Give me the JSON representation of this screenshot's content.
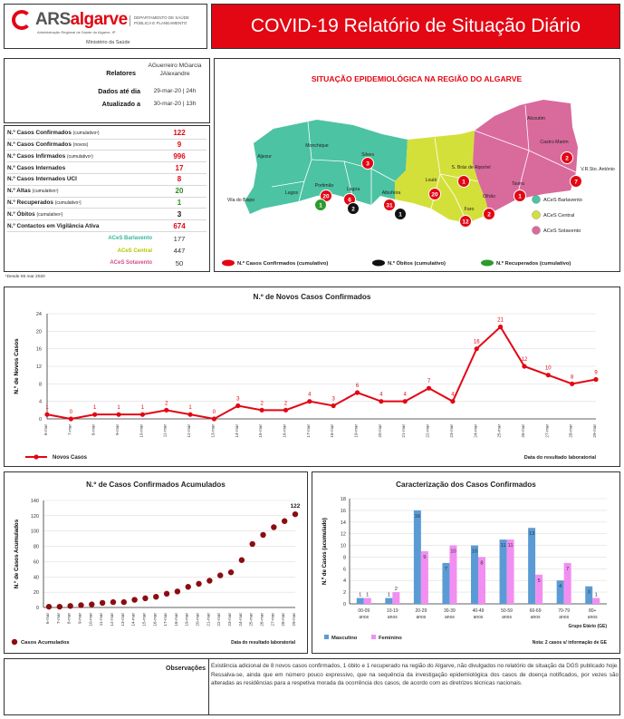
{
  "header": {
    "logo_prefix": "ARS",
    "logo_suffix": "algarve",
    "logo_tagline": "Administração Regional de Saúde do Algarve, IP",
    "logo_department": "DEPARTAMENTO DE SAÚDE PÚBLICA E PLANEAMENTO",
    "logo_ministry": "Ministério da Saúde",
    "title": "COVID-19 Relatório de Situação Diário"
  },
  "meta": {
    "relatores_label": "Relatores",
    "relatores_value": "AGuerreiro MGarcia JAlexandre",
    "dados_label": "Dados até dia",
    "dados_value": "29-mar-20 | 24h",
    "atualizado_label": "Atualizado a",
    "atualizado_value": "30-mar-20 | 13h"
  },
  "indicators": [
    {
      "label": "N.º Casos Confirmados",
      "note": "(cumulativo¹)",
      "value": "122",
      "color": "#e30613"
    },
    {
      "label": "N.º Casos Confirmados",
      "note": "(novos)",
      "value": "9",
      "color": "#e30613"
    },
    {
      "label": "N.º Casos Infirmados",
      "note": "(cumulativo¹)",
      "value": "996",
      "color": "#e30613"
    },
    {
      "label": "N.º Casos Internados",
      "note": "",
      "value": "17",
      "color": "#e30613"
    },
    {
      "label": "N.º Casos Internados UCI",
      "note": "",
      "value": "8",
      "color": "#e30613"
    },
    {
      "label": "N.º Altas",
      "note": "(cumulativo¹)",
      "value": "20",
      "color": "#2e8b1f"
    },
    {
      "label": "N.º Recuperados",
      "note": "(cumulativo¹)",
      "value": "1",
      "color": "#2e8b1f"
    },
    {
      "label": "N.º Óbitos",
      "note": "(cumulativo¹)",
      "value": "3",
      "color": "#111111"
    },
    {
      "label": "N.º Contactos em Vigilância Ativa",
      "note": "",
      "value": "674",
      "color": "#e30613"
    }
  ],
  "aces": [
    {
      "label": "ACeS Barlavento",
      "value": "177",
      "color": "#34b89c"
    },
    {
      "label": "ACeS Central",
      "value": "447",
      "color": "#b7c400"
    },
    {
      "label": "ACeS Sotavento",
      "value": "50",
      "color": "#d04f8b"
    }
  ],
  "footnote": "¹Desde 06 mar 2020",
  "map": {
    "title": "SITUAÇÃO EPIDEMIOLÓGICA NA REGIÃO DO ALGARVE",
    "legend_regions": [
      "ACeS Barlavento",
      "ACeS Central",
      "ACeS Sotavento"
    ],
    "region_colors": {
      "barlavento": "#4cc3a2",
      "central": "#d4e03a",
      "sotavento": "#d96a9c"
    },
    "places": [
      "Aljezur",
      "Monchique",
      "Silves",
      "Lagos",
      "Portimão",
      "Lagoa",
      "Vila do Bispo",
      "Albufeira",
      "Loulé",
      "S. Brás de Alportel",
      "Faro",
      "Olhão",
      "Tavira",
      "Alcoutim",
      "Castro Marim",
      "V.R.Sto. António"
    ],
    "markers": [
      {
        "place": "Silves",
        "value": "3",
        "type": "confirmed"
      },
      {
        "place": "Portimão",
        "value": "20",
        "type": "confirmed"
      },
      {
        "place": "Portimão",
        "value": "1",
        "type": "recovered"
      },
      {
        "place": "Lagoa",
        "value": "6",
        "type": "confirmed"
      },
      {
        "place": "Lagoa",
        "value": "2",
        "type": "deaths"
      },
      {
        "place": "Albufeira",
        "value": "31",
        "type": "confirmed"
      },
      {
        "place": "Albufeira",
        "value": "1",
        "type": "deaths"
      },
      {
        "place": "Loulé",
        "value": "20",
        "type": "confirmed"
      },
      {
        "place": "S. Brás de Alportel",
        "value": "1",
        "type": "confirmed"
      },
      {
        "place": "Faro",
        "value": "12",
        "type": "confirmed"
      },
      {
        "place": "Olhão",
        "value": "2",
        "type": "confirmed"
      },
      {
        "place": "Tavira",
        "value": "1",
        "type": "confirmed"
      },
      {
        "place": "Castro Marim",
        "value": "2",
        "type": "confirmed"
      },
      {
        "place": "V.R.Sto. António",
        "value": "7",
        "type": "confirmed"
      }
    ],
    "legend_markers": [
      "N.º Casos Confirmados (cumulativo)",
      "N.º Óbitos (cumulativo)",
      "N.º Recuperados (cumulativo)"
    ]
  },
  "chart_data": [
    {
      "type": "line",
      "title": "N.º de Novos Casos Confirmados",
      "ylabel": "N.º de Novos Casos",
      "x": [
        "6-mar",
        "7-mar",
        "8-mar",
        "9-mar",
        "10-mar",
        "11-mar",
        "12-mar",
        "13-mar",
        "14-mar",
        "15-mar",
        "16-mar",
        "17-mar",
        "18-mar",
        "19-mar",
        "20-mar",
        "21-mar",
        "22-mar",
        "23-mar",
        "24-mar",
        "25-mar",
        "26-mar",
        "27-mar",
        "28-mar",
        "29-mar"
      ],
      "series": [
        {
          "name": "Novos Casos",
          "values": [
            1,
            0,
            1,
            1,
            1,
            2,
            1,
            0,
            3,
            2,
            2,
            4,
            3,
            6,
            4,
            4,
            7,
            4,
            16,
            21,
            12,
            10,
            8,
            9
          ]
        }
      ],
      "ylim": [
        0,
        24
      ],
      "yticks": [
        0,
        4,
        8,
        12,
        16,
        20,
        24
      ],
      "source": "Data do resultado laboratorial"
    },
    {
      "type": "scatter",
      "title": "N.º de Casos Confirmados Acumulados",
      "ylabel": "N.º de Casos Acumulados",
      "x": [
        "6-mar",
        "7-mar",
        "8-mar",
        "9-mar",
        "10-mar",
        "11-mar",
        "12-mar",
        "13-mar",
        "14-mar",
        "15-mar",
        "16-mar",
        "17-mar",
        "18-mar",
        "19-mar",
        "20-mar",
        "21-mar",
        "22-mar",
        "23-mar",
        "24-mar",
        "25-mar",
        "26-mar",
        "27-mar",
        "28-mar",
        "29-mar"
      ],
      "series": [
        {
          "name": "Casos Acumulados",
          "values": [
            1,
            1,
            2,
            3,
            4,
            6,
            7,
            7,
            10,
            12,
            14,
            18,
            21,
            27,
            31,
            35,
            42,
            46,
            62,
            83,
            95,
            105,
            113,
            122
          ]
        }
      ],
      "last_label": "122",
      "ylim": [
        0,
        140
      ],
      "yticks": [
        0,
        20,
        40,
        60,
        80,
        100,
        120,
        140
      ],
      "source": "Data do resultado laboratorial"
    },
    {
      "type": "bar",
      "title": "Caracterização dos Casos Confirmados",
      "ylabel": "N.º de Casos (acumulado)",
      "categories": [
        "00-09 anos",
        "10-19 anos",
        "20-29 anos",
        "30-39 anos",
        "40-49 anos",
        "50-59 anos",
        "60-69 anos",
        "70-79 anos",
        "80+ anos"
      ],
      "series": [
        {
          "name": "Masculino",
          "color": "#5b9bd5",
          "values": [
            1,
            1,
            16,
            7,
            10,
            11,
            13,
            4,
            3
          ]
        },
        {
          "name": "Feminino",
          "color": "#f28ef2",
          "values": [
            1,
            2,
            9,
            10,
            8,
            11,
            5,
            7,
            1
          ]
        }
      ],
      "ylim": [
        0,
        18
      ],
      "yticks": [
        0,
        2,
        4,
        6,
        8,
        10,
        12,
        14,
        16,
        18
      ],
      "xlabel_group": "Grupo Etário (GE)",
      "note": "Nota: 2 casos s/ informação de GE"
    }
  ],
  "observations": {
    "label": "Observações",
    "text": "Existência adicional de 8 novos casos confirmados, 1 óbito e 1 recuperado na região do Algarve, não divulgados no relatório de situação da DGS publicado hoje. Ressalva-se, ainda que em número pouco expressivo, que na sequência da investigação epidemiológica dos casos de doença notificados, por vezes são alteradas as residências para a respetiva morada da ocorrência dos casos, de acordo com as diretrizes técnicas nacionais."
  }
}
